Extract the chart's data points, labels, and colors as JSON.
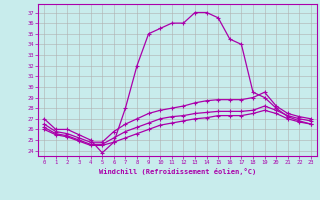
{
  "xlabel": "Windchill (Refroidissement éolien,°C)",
  "background_color": "#c8ecec",
  "grid_color": "#b0b0b0",
  "line_color": "#aa00aa",
  "xlim": [
    -0.5,
    23.5
  ],
  "ylim": [
    23.5,
    37.8
  ],
  "xticks": [
    0,
    1,
    2,
    3,
    4,
    5,
    6,
    7,
    8,
    9,
    10,
    11,
    12,
    13,
    14,
    15,
    16,
    17,
    18,
    19,
    20,
    21,
    22,
    23
  ],
  "yticks": [
    24,
    25,
    26,
    27,
    28,
    29,
    30,
    31,
    32,
    33,
    34,
    35,
    36,
    37
  ],
  "line1": [
    27.0,
    26.0,
    26.0,
    25.5,
    25.0,
    23.8,
    24.8,
    28.0,
    32.0,
    35.0,
    35.5,
    36.0,
    36.0,
    37.0,
    37.0,
    36.5,
    34.5,
    34.0,
    29.5,
    29.0,
    28.0,
    27.2,
    26.8,
    26.5
  ],
  "line2": [
    26.5,
    25.8,
    25.6,
    25.2,
    24.8,
    24.8,
    25.8,
    26.5,
    27.0,
    27.5,
    27.8,
    28.0,
    28.2,
    28.5,
    28.7,
    28.8,
    28.8,
    28.8,
    29.0,
    29.5,
    28.2,
    27.5,
    27.2,
    27.0
  ],
  "line3": [
    26.2,
    25.6,
    25.4,
    25.0,
    24.6,
    24.6,
    25.2,
    25.8,
    26.2,
    26.6,
    27.0,
    27.2,
    27.3,
    27.5,
    27.6,
    27.7,
    27.7,
    27.7,
    27.8,
    28.2,
    27.8,
    27.3,
    27.0,
    26.8
  ],
  "line4": [
    26.0,
    25.5,
    25.3,
    24.9,
    24.5,
    24.5,
    24.8,
    25.2,
    25.6,
    26.0,
    26.4,
    26.6,
    26.8,
    27.0,
    27.1,
    27.3,
    27.3,
    27.3,
    27.5,
    27.8,
    27.5,
    27.0,
    26.7,
    26.5
  ]
}
